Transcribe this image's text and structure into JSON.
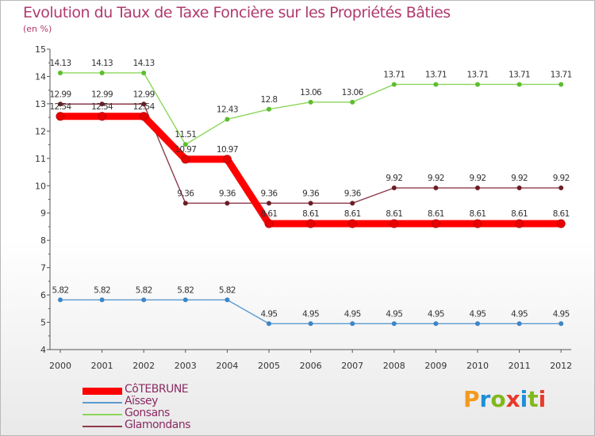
{
  "title": "Evolution du Taux de Taxe Foncière sur les Propriétés Bâties",
  "unit_label": "(en %)",
  "logo_text": "Proxiti",
  "chart_data": {
    "type": "line",
    "title": "Evolution du Taux de Taxe Foncière sur les Propriétés Bâties",
    "ylabel": "(en %)",
    "xlabel": "",
    "x": [
      "2000",
      "2001",
      "2002",
      "2003",
      "2004",
      "2005",
      "2006",
      "2007",
      "2008",
      "2009",
      "2010",
      "2011",
      "2012"
    ],
    "ylim": [
      4,
      15
    ],
    "yticks": [
      4,
      5,
      6,
      7,
      8,
      9,
      10,
      11,
      12,
      13,
      14,
      15
    ],
    "grid": false,
    "legend_position": "bottom-left",
    "series": [
      {
        "name": "Gonsans",
        "color": "#8cd65a",
        "marker": "#5cbd2e",
        "values": [
          14.13,
          14.13,
          14.13,
          11.51,
          12.43,
          12.8,
          13.06,
          13.06,
          13.71,
          13.71,
          13.71,
          13.71,
          13.71
        ]
      },
      {
        "name": "Glamondans",
        "color": "#8e3a4a",
        "marker": "#6a1e24",
        "values": [
          12.99,
          12.99,
          12.99,
          9.36,
          9.36,
          9.36,
          9.36,
          9.36,
          9.92,
          9.92,
          9.92,
          9.92,
          9.92
        ]
      },
      {
        "name": "Aïssey",
        "color": "#5b9bd0",
        "marker": "#3d86c6",
        "values": [
          5.82,
          5.82,
          5.82,
          5.82,
          5.82,
          4.95,
          4.95,
          4.95,
          4.95,
          4.95,
          4.95,
          4.95,
          4.95
        ]
      },
      {
        "name": "CôTEBRUNE",
        "color": "#ff0000",
        "marker": "#e80000",
        "thick": true,
        "values": [
          12.54,
          12.54,
          12.54,
          10.97,
          10.97,
          8.61,
          8.61,
          8.61,
          8.61,
          8.61,
          8.61,
          8.61,
          8.61
        ]
      }
    ],
    "legend_order": [
      "CôTEBRUNE",
      "Aïssey",
      "Gonsans",
      "Glamondans"
    ]
  }
}
